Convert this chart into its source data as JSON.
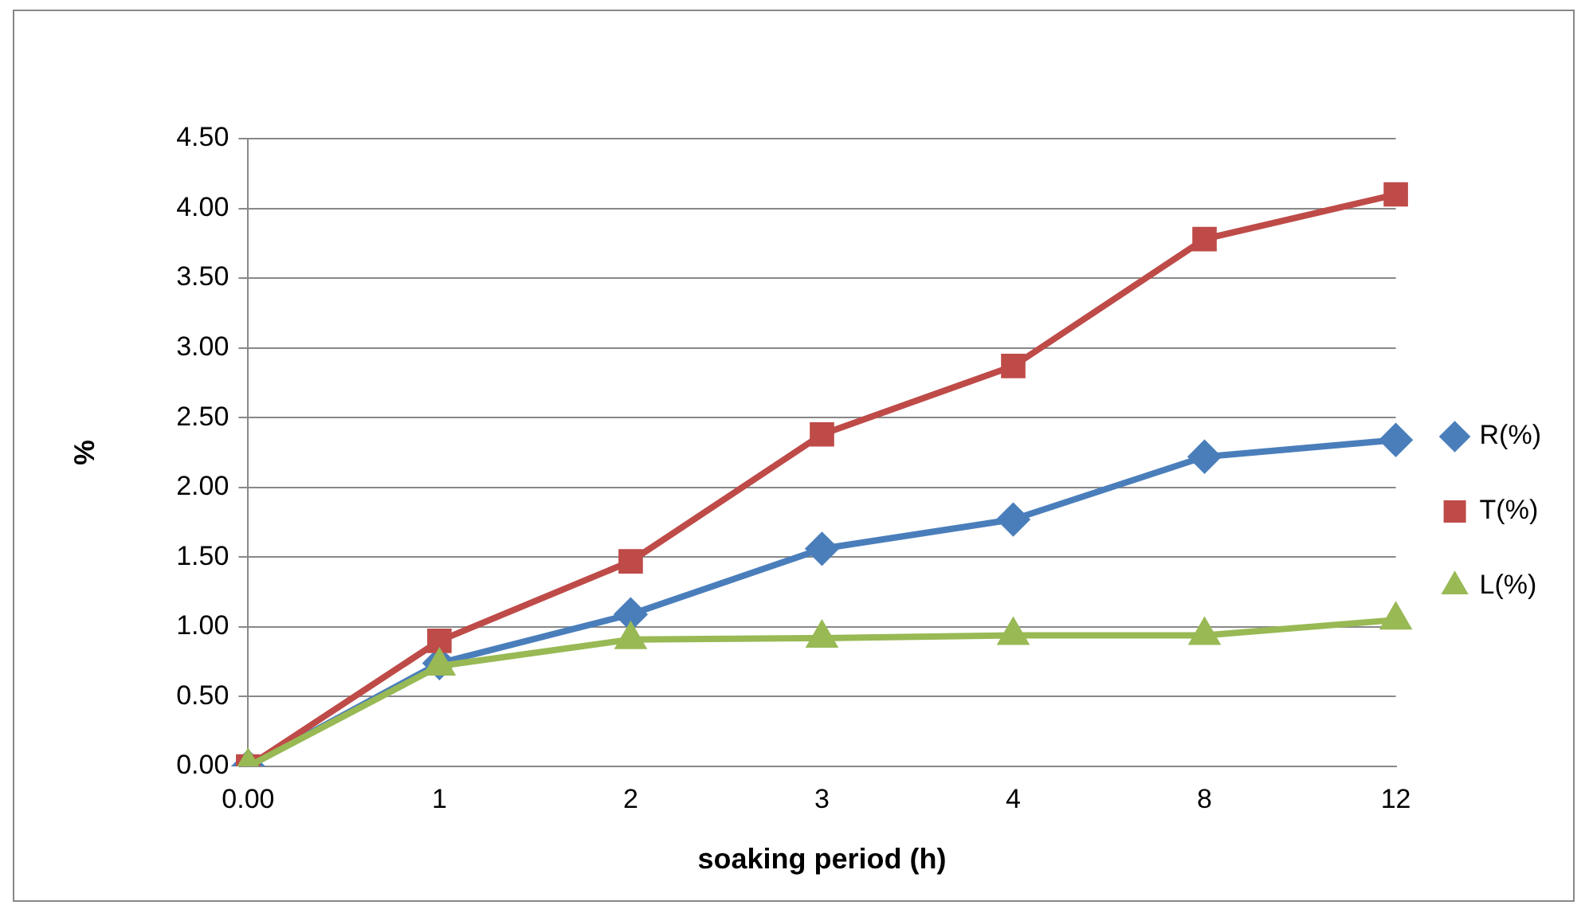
{
  "chart_data": {
    "type": "line",
    "xlabel": "soaking period (h)",
    "ylabel": "%",
    "categories": [
      "0.00",
      "1",
      "2",
      "3",
      "4",
      "8",
      "12"
    ],
    "series": [
      {
        "name": "R(%)",
        "color": "#4a7ebb",
        "marker": "diamond",
        "values": [
          0,
          0.74,
          1.09,
          1.56,
          1.77,
          2.22,
          2.34
        ]
      },
      {
        "name": "T(%)",
        "color": "#be4b48",
        "marker": "square",
        "values": [
          0,
          0.9,
          1.47,
          2.38,
          2.87,
          3.78,
          4.1
        ]
      },
      {
        "name": "L(%)",
        "color": "#98b954",
        "marker": "triangle",
        "values": [
          0,
          0.72,
          0.91,
          0.92,
          0.94,
          0.94,
          1.05
        ]
      }
    ],
    "ylim": [
      0,
      4.5
    ],
    "yticks": [
      {
        "value": 0,
        "label": "0.00"
      },
      {
        "value": 0.5,
        "label": "0.50"
      },
      {
        "value": 1,
        "label": "1.00"
      },
      {
        "value": 1.5,
        "label": "1.50"
      },
      {
        "value": 2,
        "label": "2.00"
      },
      {
        "value": 2.5,
        "label": "2.50"
      },
      {
        "value": 3,
        "label": "3.00"
      },
      {
        "value": 3.5,
        "label": "3.50"
      },
      {
        "value": 4,
        "label": "4.00"
      },
      {
        "value": 4.5,
        "label": "4.50"
      }
    ],
    "grid": "y",
    "legend": "right",
    "line_style": "solid"
  }
}
